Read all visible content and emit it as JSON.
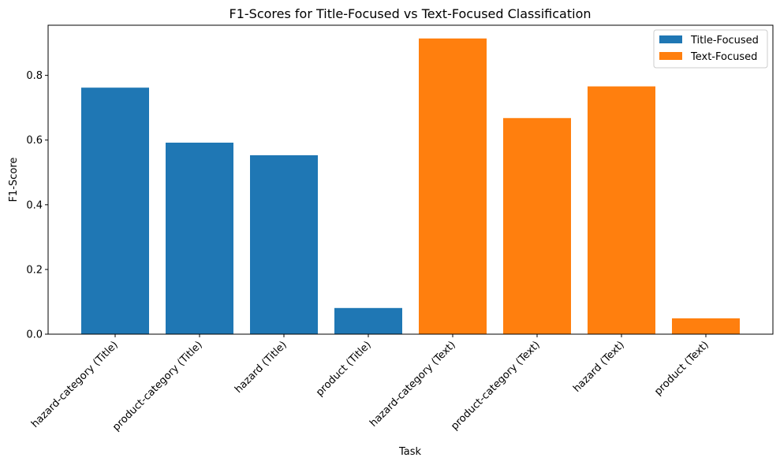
{
  "chart_data": {
    "type": "bar",
    "title": "F1-Scores for Title-Focused vs Text-Focused Classification",
    "xlabel": "Task",
    "ylabel": "F1-Score",
    "ylim": [
      0,
      0.955
    ],
    "yticks": [
      "0.0",
      "0.2",
      "0.4",
      "0.6",
      "0.8"
    ],
    "categories": [
      "hazard-category (Title)",
      "product-category (Title)",
      "hazard (Title)",
      "product (Title)",
      "hazard-category (Text)",
      "product-category (Text)",
      "hazard (Text)",
      "product (Text)"
    ],
    "series": [
      {
        "name": "Title-Focused",
        "color": "#1f77b4",
        "values": [
          0.762,
          0.592,
          0.553,
          0.081,
          null,
          null,
          null,
          null
        ]
      },
      {
        "name": "Text-Focused",
        "color": "#ff7f0e",
        "values": [
          null,
          null,
          null,
          null,
          0.914,
          0.668,
          0.766,
          0.049
        ]
      }
    ],
    "legend_position": "top-right",
    "grid": false
  }
}
